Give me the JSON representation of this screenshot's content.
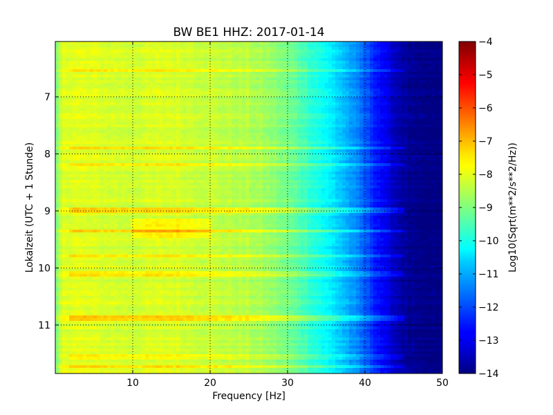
{
  "chart_data": {
    "type": "heatmap",
    "title": "BW BE1 HHZ: 2017-01-14",
    "xlabel": "Frequency [Hz]",
    "ylabel": "Lokalzeit (UTC + 1 Stunde)",
    "colorbar_label": "Log10(Sqrt(m**2/s**2/Hz))",
    "xlim": [
      0,
      50
    ],
    "ylim": [
      6.03,
      11.85
    ],
    "y_inverted": true,
    "xticks": [
      10,
      20,
      30,
      40,
      50
    ],
    "yticks": [
      7,
      8,
      9,
      10,
      11
    ],
    "colorbar_range": [
      -14,
      -4
    ],
    "colorbar_ticks": [
      -4,
      -5,
      -6,
      -7,
      -8,
      -9,
      -10,
      -11,
      -12,
      -13,
      -14
    ],
    "colormap": "jet",
    "grid": true,
    "grid_style": "dotted",
    "spectrum_profile": {
      "description_points_hz": [
        0,
        1,
        5,
        10,
        15,
        20,
        25,
        28,
        31,
        34,
        37,
        39,
        41,
        43,
        45,
        47,
        50
      ],
      "log10_psd": [
        -9.2,
        -8.0,
        -8.1,
        -8.2,
        -8.1,
        -8.3,
        -8.5,
        -8.8,
        -9.3,
        -10.0,
        -10.8,
        -11.5,
        -12.3,
        -13.1,
        -13.7,
        -14.0,
        -14.0
      ]
    },
    "bright_bands_hours": [
      {
        "t": 6.55,
        "delta": 0.5
      },
      {
        "t": 7.9,
        "delta": 0.6
      },
      {
        "t": 8.2,
        "delta": 0.6
      },
      {
        "t": 9.0,
        "delta": 0.9
      },
      {
        "t": 9.35,
        "delta": 0.7
      },
      {
        "t": 9.78,
        "delta": 0.6
      },
      {
        "t": 10.1,
        "delta": 0.5
      },
      {
        "t": 10.88,
        "delta": 0.8
      },
      {
        "t": 11.55,
        "delta": 0.5
      },
      {
        "t": 11.72,
        "delta": 0.6
      }
    ],
    "warm_region": {
      "t_range": [
        9.15,
        9.45
      ],
      "freq_range": [
        10,
        20
      ],
      "delta": 0.5
    }
  }
}
